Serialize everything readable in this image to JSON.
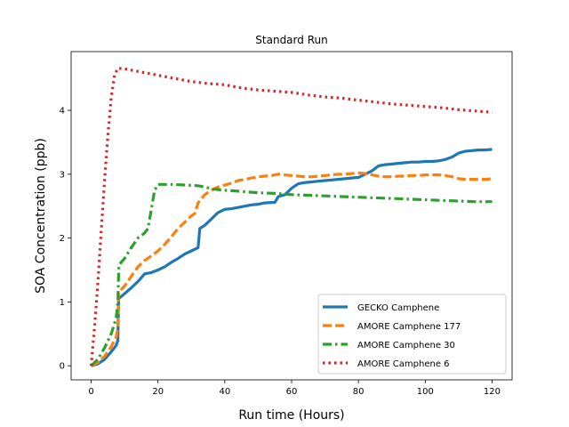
{
  "chart_data": {
    "type": "line",
    "title": "Standard Run",
    "xlabel": "Run time (Hours)",
    "ylabel": "SOA Concentration (ppb)",
    "xlim": [
      -6,
      126
    ],
    "ylim": [
      -0.22,
      4.92
    ],
    "xticks": [
      0,
      20,
      40,
      60,
      80,
      100,
      120
    ],
    "yticks": [
      0,
      1,
      2,
      3,
      4
    ],
    "grid": false,
    "legend_position": "lower-right",
    "series": [
      {
        "name": "GECKO Camphene",
        "color": "#1f77b4",
        "style": "solid",
        "x": [
          0,
          2,
          4,
          6,
          7.5,
          8,
          8.2,
          10,
          12,
          14,
          16,
          18,
          20,
          22,
          24,
          26,
          28,
          30,
          32,
          32.5,
          34,
          36,
          38,
          40,
          42,
          44,
          46,
          48,
          50,
          52,
          55,
          56,
          58,
          60,
          62,
          64,
          66,
          68,
          70,
          72,
          74,
          76,
          78,
          80,
          82,
          84,
          86,
          88,
          90,
          92,
          94,
          96,
          98,
          100,
          102,
          104,
          106,
          108,
          110,
          112,
          114,
          116,
          118,
          120
        ],
        "y": [
          0,
          0.03,
          0.1,
          0.22,
          0.32,
          0.4,
          1.05,
          1.13,
          1.22,
          1.32,
          1.44,
          1.46,
          1.5,
          1.55,
          1.62,
          1.68,
          1.75,
          1.8,
          1.85,
          2.15,
          2.2,
          2.3,
          2.4,
          2.45,
          2.46,
          2.48,
          2.5,
          2.52,
          2.53,
          2.55,
          2.56,
          2.65,
          2.68,
          2.78,
          2.85,
          2.87,
          2.88,
          2.89,
          2.9,
          2.91,
          2.92,
          2.93,
          2.94,
          2.95,
          3.0,
          3.05,
          3.13,
          3.15,
          3.16,
          3.17,
          3.18,
          3.19,
          3.19,
          3.2,
          3.2,
          3.21,
          3.23,
          3.27,
          3.33,
          3.36,
          3.37,
          3.38,
          3.38,
          3.39
        ]
      },
      {
        "name": "AMORE Camphene 177",
        "color": "#ff7f0e",
        "style": "dashed",
        "x": [
          0,
          2,
          4,
          6,
          7.5,
          8,
          8.2,
          10,
          12,
          14,
          16,
          18,
          20,
          22,
          24,
          26,
          28,
          30,
          31,
          32,
          34,
          36,
          38,
          40,
          42,
          44,
          46,
          48,
          50,
          52,
          54,
          56,
          58,
          60,
          62,
          64,
          66,
          68,
          70,
          72,
          74,
          76,
          78,
          80,
          82,
          84,
          86,
          88,
          90,
          92,
          94,
          96,
          98,
          100,
          102,
          104,
          106,
          108,
          110,
          112,
          114,
          116,
          118,
          120
        ],
        "y": [
          0,
          0.05,
          0.15,
          0.3,
          0.45,
          0.6,
          1.15,
          1.25,
          1.4,
          1.55,
          1.65,
          1.72,
          1.8,
          1.9,
          2.02,
          2.15,
          2.25,
          2.35,
          2.38,
          2.55,
          2.68,
          2.75,
          2.8,
          2.83,
          2.86,
          2.9,
          2.92,
          2.94,
          2.96,
          2.97,
          2.98,
          3.0,
          2.99,
          2.98,
          2.97,
          2.96,
          2.96,
          2.97,
          2.98,
          2.99,
          3.0,
          3.0,
          3.01,
          3.02,
          3.01,
          2.99,
          2.97,
          2.96,
          2.96,
          2.97,
          2.97,
          2.98,
          2.98,
          2.99,
          2.99,
          2.99,
          2.98,
          2.96,
          2.93,
          2.92,
          2.92,
          2.92,
          2.92,
          2.93
        ]
      },
      {
        "name": "AMORE Camphene 30",
        "color": "#2ca02c",
        "style": "dashdot",
        "x": [
          0,
          2,
          4,
          6,
          7.5,
          8,
          8.3,
          10,
          12,
          14,
          16,
          17,
          18,
          19,
          20,
          24,
          28,
          32,
          34,
          36,
          38,
          40,
          45,
          50,
          55,
          60,
          65,
          70,
          75,
          80,
          85,
          90,
          95,
          100,
          105,
          110,
          115,
          120
        ],
        "y": [
          0,
          0.1,
          0.28,
          0.5,
          0.75,
          1.0,
          1.58,
          1.68,
          1.85,
          2.0,
          2.08,
          2.15,
          2.45,
          2.75,
          2.84,
          2.84,
          2.83,
          2.82,
          2.8,
          2.77,
          2.76,
          2.75,
          2.73,
          2.71,
          2.7,
          2.68,
          2.67,
          2.66,
          2.65,
          2.64,
          2.63,
          2.62,
          2.61,
          2.6,
          2.59,
          2.58,
          2.57,
          2.57
        ]
      },
      {
        "name": "AMORE Camphene 6",
        "color": "#d62728",
        "style": "dotted",
        "x": [
          0,
          1,
          2,
          3,
          4,
          5,
          6,
          7,
          8,
          10,
          15,
          20,
          25,
          30,
          35,
          40,
          45,
          50,
          55,
          60,
          65,
          70,
          75,
          80,
          85,
          90,
          95,
          100,
          105,
          110,
          115,
          120
        ],
        "y": [
          0,
          0.6,
          1.3,
          2.1,
          2.9,
          3.6,
          4.2,
          4.55,
          4.66,
          4.65,
          4.6,
          4.55,
          4.5,
          4.45,
          4.42,
          4.4,
          4.35,
          4.32,
          4.3,
          4.28,
          4.24,
          4.21,
          4.19,
          4.16,
          4.13,
          4.1,
          4.08,
          4.06,
          4.04,
          4.01,
          3.99,
          3.97
        ]
      }
    ]
  }
}
